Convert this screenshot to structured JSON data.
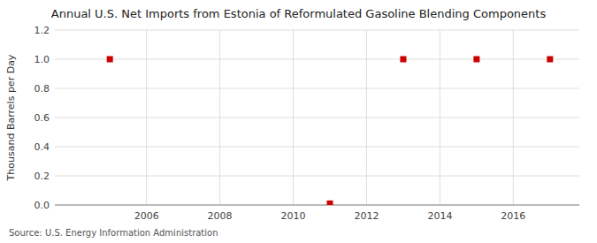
{
  "chart_data": {
    "type": "scatter",
    "title": "Annual U.S. Net Imports from Estonia of Reformulated Gasoline Blending Components",
    "y_label": "Thousand Barrels per Day",
    "source": "Source: U.S. Energy Information Administration",
    "x": [
      2005,
      2011,
      2013,
      2015,
      2017
    ],
    "values": [
      1.0,
      0.01,
      1.0,
      1.0,
      1.0
    ],
    "color": "#cc0000",
    "marker": "square",
    "xlim": [
      2003.5,
      2017.8
    ],
    "ylim": [
      0.0,
      1.2
    ],
    "xticks": [
      2006,
      2008,
      2010,
      2012,
      2014,
      2016
    ],
    "yticks": [
      {
        "value": 0.0,
        "label": "0.0"
      },
      0.2,
      0.4,
      0.6,
      0.8,
      {
        "value": 1.0,
        "label": "1.0"
      },
      1.2
    ],
    "grid": true
  }
}
